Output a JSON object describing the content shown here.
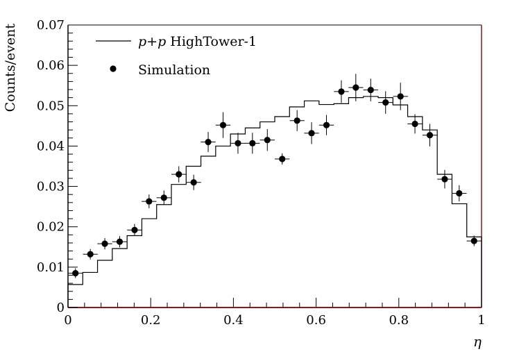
{
  "chart_data": {
    "type": "scatter",
    "title": "",
    "xlabel": "η",
    "ylabel": "Counts/event",
    "xlim": [
      0,
      1
    ],
    "ylim": [
      0,
      0.07
    ],
    "grid": false,
    "legend": "top-left",
    "x_ticks": [
      {
        "value": 0,
        "label": "0"
      },
      {
        "value": 0.2,
        "label": "0.2"
      },
      {
        "value": 0.4,
        "label": "0.4"
      },
      {
        "value": 0.6,
        "label": "0.6"
      },
      {
        "value": 0.8,
        "label": "0.8"
      },
      {
        "value": 1,
        "label": "1"
      }
    ],
    "y_ticks": [
      {
        "value": 0,
        "label": "0"
      },
      {
        "value": 0.01,
        "label": "0.01"
      },
      {
        "value": 0.02,
        "label": "0.02"
      },
      {
        "value": 0.03,
        "label": "0.03"
      },
      {
        "value": 0.04,
        "label": "0.04"
      },
      {
        "value": 0.05,
        "label": "0.05"
      },
      {
        "value": 0.06,
        "label": "0.06"
      },
      {
        "value": 0.07,
        "label": "0.07"
      }
    ],
    "legend_entries": [
      {
        "style": "line",
        "label_italic": "p+p",
        "label": " HighTower-1"
      },
      {
        "style": "marker",
        "label": "Simulation"
      }
    ],
    "series": [
      {
        "name": "p+p HighTower-1",
        "kind": "step-histogram",
        "bin_edges": [
          0,
          0.0357,
          0.0714,
          0.1071,
          0.1429,
          0.1786,
          0.2143,
          0.25,
          0.2857,
          0.3214,
          0.3571,
          0.3929,
          0.4286,
          0.4643,
          0.5,
          0.5357,
          0.5714,
          0.6071,
          0.6429,
          0.6786,
          0.7143,
          0.75,
          0.7857,
          0.8214,
          0.8571,
          0.8929,
          0.9286,
          0.9643,
          1.0
        ],
        "values": [
          0.0057,
          0.0087,
          0.0117,
          0.0146,
          0.0178,
          0.022,
          0.0255,
          0.0305,
          0.035,
          0.0375,
          0.04,
          0.043,
          0.0445,
          0.046,
          0.0473,
          0.0497,
          0.0512,
          0.0503,
          0.0505,
          0.052,
          0.0523,
          0.052,
          0.0502,
          0.0473,
          0.044,
          0.033,
          0.0257,
          0.0175
        ]
      },
      {
        "name": "Simulation",
        "kind": "points-with-errors",
        "x": [
          0.018,
          0.054,
          0.089,
          0.125,
          0.161,
          0.196,
          0.232,
          0.268,
          0.304,
          0.339,
          0.375,
          0.411,
          0.446,
          0.482,
          0.518,
          0.554,
          0.589,
          0.625,
          0.661,
          0.696,
          0.732,
          0.768,
          0.804,
          0.839,
          0.875,
          0.911,
          0.946,
          0.982
        ],
        "y": [
          0.0085,
          0.0132,
          0.0158,
          0.0163,
          0.0192,
          0.0263,
          0.0272,
          0.033,
          0.031,
          0.041,
          0.0452,
          0.0407,
          0.0407,
          0.0415,
          0.0368,
          0.0463,
          0.0432,
          0.0452,
          0.0535,
          0.0545,
          0.0539,
          0.0508,
          0.0523,
          0.0455,
          0.0427,
          0.0318,
          0.0283,
          0.0165
        ],
        "yerr": [
          0.0012,
          0.0013,
          0.0014,
          0.0014,
          0.0015,
          0.0017,
          0.0018,
          0.002,
          0.0019,
          0.0025,
          0.0032,
          0.0026,
          0.0026,
          0.0027,
          0.0014,
          0.0026,
          0.0027,
          0.0025,
          0.0028,
          0.0034,
          0.0028,
          0.0028,
          0.0034,
          0.0024,
          0.0028,
          0.0023,
          0.002,
          0.0013
        ],
        "xerr": 0.0179
      }
    ]
  }
}
